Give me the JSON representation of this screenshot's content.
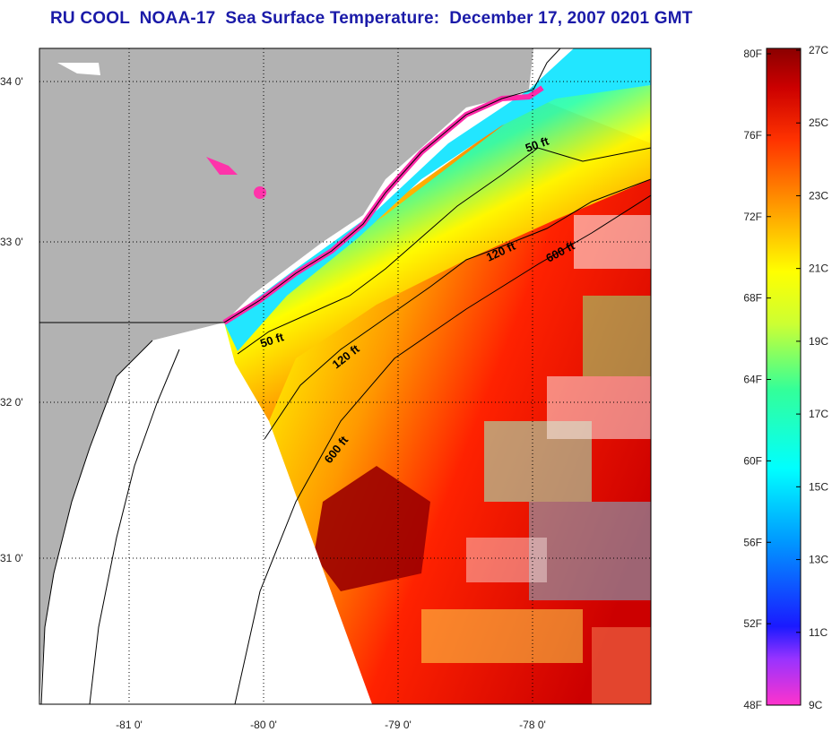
{
  "title": "RU COOL  NOAA-17  Sea Surface Temperature:  December 17, 2007 0201 GMT",
  "map": {
    "lat_ticks": [
      "34 0'",
      "33 0'",
      "32 0'",
      "31 0'"
    ],
    "lon_ticks": [
      "-81 0'",
      "-80 0'",
      "-79 0'",
      "-78 0'"
    ],
    "isobaths": [
      {
        "label": "50 ft"
      },
      {
        "label": "50 ft"
      },
      {
        "label": "120 ft"
      },
      {
        "label": "120 ft"
      },
      {
        "label": "600 ft"
      },
      {
        "label": "600 ft"
      }
    ],
    "colors": {
      "land": "#b2b2b2",
      "no_data": "#ffffff",
      "coastline": "#000000"
    }
  },
  "colorbar": {
    "f_labels": [
      "80F",
      "76F",
      "72F",
      "68F",
      "64F",
      "60F",
      "56F",
      "52F",
      "48F"
    ],
    "c_labels": [
      "27C",
      "25C",
      "23C",
      "21C",
      "19C",
      "17C",
      "15C",
      "13C",
      "11C",
      "9C"
    ],
    "stops": [
      "#ff33cc",
      "#9933ff",
      "#1a1aff",
      "#0099ff",
      "#00ffff",
      "#33ff99",
      "#ccff33",
      "#ffff00",
      "#ff9900",
      "#ff3300",
      "#cc0000",
      "#8b0000"
    ]
  }
}
